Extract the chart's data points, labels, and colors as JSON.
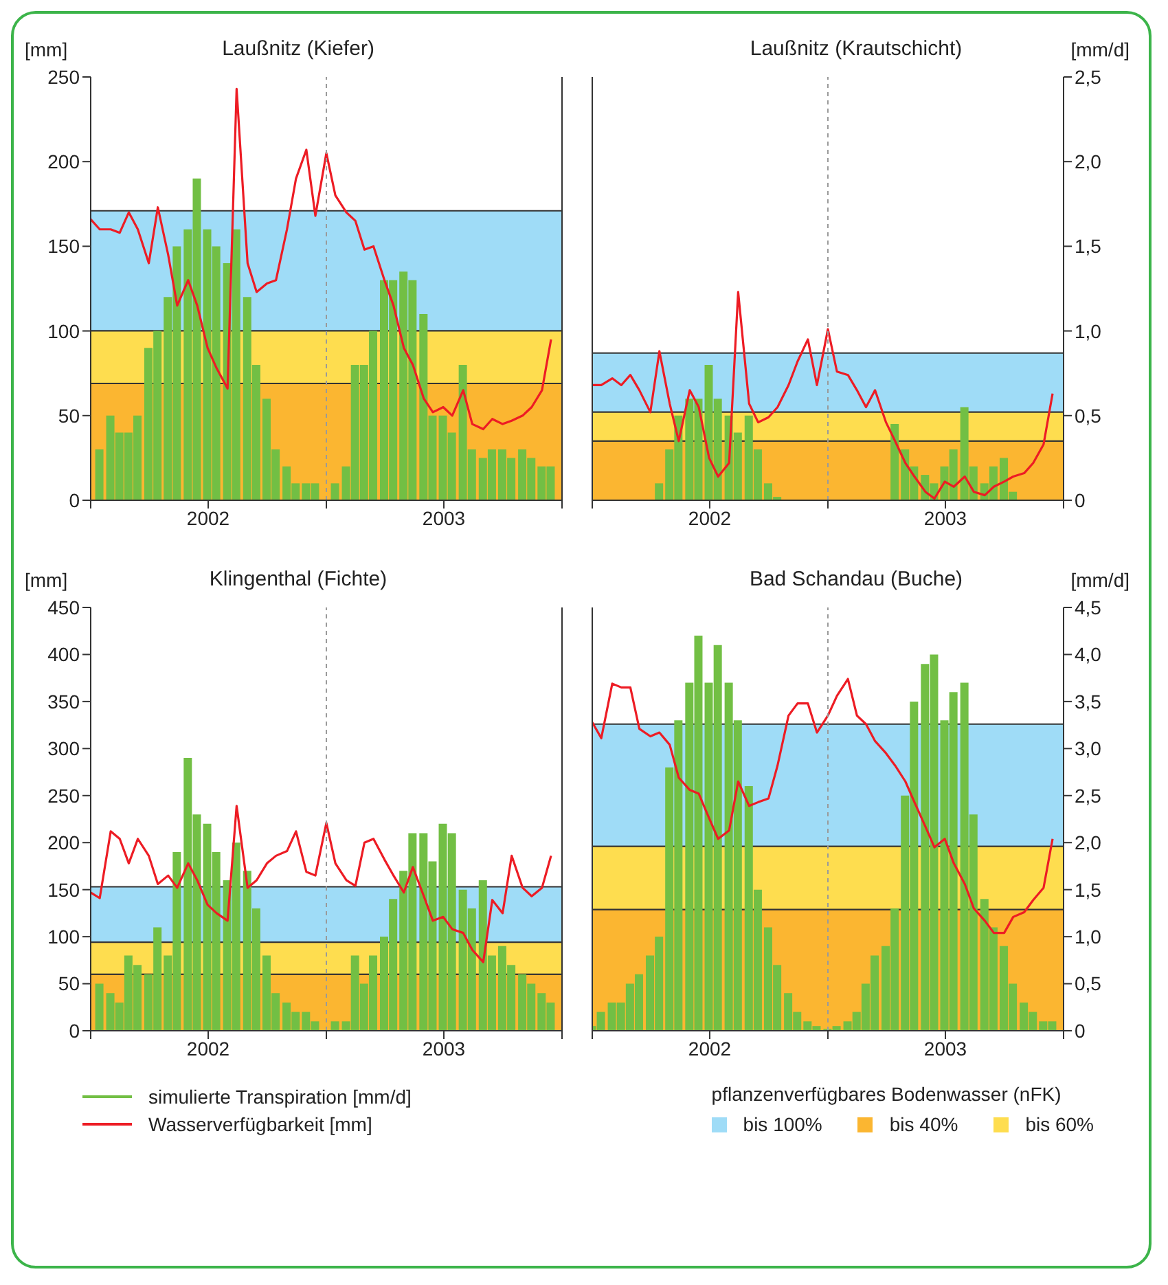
{
  "chart_data": [
    {
      "type": "bar",
      "title": "Laußnitz (Kiefer)",
      "ylabel": "[mm]",
      "tick_labels": "xy",
      "x": [
        "2002-01-01",
        "2002-01-15",
        "2002-02-01",
        "2002-02-15",
        "2002-03-01",
        "2002-03-15",
        "2002-04-01",
        "2002-04-15",
        "2002-05-01",
        "2002-05-15",
        "2002-06-01",
        "2002-06-15",
        "2002-07-01",
        "2002-07-15",
        "2002-08-01",
        "2002-08-15",
        "2002-09-01",
        "2002-09-15",
        "2002-10-01",
        "2002-10-15",
        "2002-11-01",
        "2002-11-15",
        "2002-12-01",
        "2002-12-15",
        "2003-01-01",
        "2003-01-15",
        "2003-02-01",
        "2003-02-15",
        "2003-03-01",
        "2003-03-15",
        "2003-04-01",
        "2003-04-15",
        "2003-05-01",
        "2003-05-15",
        "2003-06-01",
        "2003-06-15",
        "2003-07-01",
        "2003-07-15",
        "2003-08-01",
        "2003-08-15",
        "2003-09-01",
        "2003-09-15",
        "2003-10-01",
        "2003-10-15",
        "2003-11-01",
        "2003-11-15",
        "2003-12-01",
        "2003-12-15"
      ],
      "xlim": [
        "2002-01-01",
        "2004-01-01"
      ],
      "xticks": [
        {
          "value": "2002-01-01",
          "label": null
        },
        {
          "value": "2002-07-02",
          "label": "2002"
        },
        {
          "value": "2003-01-01",
          "label": null
        },
        {
          "value": "2003-07-02",
          "label": "2003"
        },
        {
          "value": "2004-01-01",
          "label": null
        }
      ],
      "ylim": [
        0,
        250
      ],
      "yticks": [
        0,
        50,
        100,
        150,
        200,
        250
      ],
      "y2lim": [
        0,
        2.5
      ],
      "series": [
        {
          "axis": "y2",
          "color": "#72bf44",
          "values": [
            0,
            0.3,
            0.5,
            0.4,
            0.4,
            0.5,
            0.9,
            1.0,
            1.2,
            1.5,
            1.6,
            1.9,
            1.6,
            1.5,
            1.4,
            1.6,
            1.2,
            0.8,
            0.6,
            0.3,
            0.2,
            0.1,
            0.1,
            0.1,
            0,
            0.1,
            0.2,
            0.8,
            0.8,
            1.0,
            1.3,
            1.3,
            1.35,
            1.3,
            1.1,
            0.5,
            0.5,
            0.4,
            0.8,
            0.3,
            0.25,
            0.3,
            0.3,
            0.25,
            0.3,
            0.25,
            0.2,
            0.2
          ]
        },
        {
          "type": "line",
          "color": "#ed1c24",
          "values": [
            166,
            160,
            160,
            158,
            170,
            160,
            140,
            173,
            145,
            115,
            130,
            115,
            90,
            78,
            66,
            243,
            140,
            123,
            128,
            130,
            160,
            190,
            207,
            168,
            205,
            180,
            170,
            165,
            148,
            150,
            130,
            115,
            90,
            80,
            60,
            52,
            55,
            50,
            65,
            45,
            42,
            48,
            45,
            47,
            50,
            55,
            65,
            95
          ]
        }
      ],
      "bands": [
        {
          "axis": "y",
          "from": 100,
          "to": 171,
          "color": "#9fdcf7"
        },
        {
          "axis": "y",
          "from": 0,
          "to": 69,
          "color": "#fbb631"
        },
        {
          "axis": "y",
          "from": 69,
          "to": 100,
          "color": "#fedd4f"
        }
      ],
      "ref_lines": [
        {
          "axis": "x",
          "value": "2003-01-01",
          "color": "#9a9a9a",
          "line_style": "dashed"
        }
      ]
    },
    {
      "type": "bar",
      "title": "Laußnitz (Krautschicht)",
      "y2label": "[mm/d]",
      "tick_labels": "xy2",
      "x": [
        "2002-01-01",
        "2002-01-15",
        "2002-02-01",
        "2002-02-15",
        "2002-03-01",
        "2002-03-15",
        "2002-04-01",
        "2002-04-15",
        "2002-05-01",
        "2002-05-15",
        "2002-06-01",
        "2002-06-15",
        "2002-07-01",
        "2002-07-15",
        "2002-08-01",
        "2002-08-15",
        "2002-09-01",
        "2002-09-15",
        "2002-10-01",
        "2002-10-15",
        "2002-11-01",
        "2002-11-15",
        "2002-12-01",
        "2002-12-15",
        "2003-01-01",
        "2003-01-15",
        "2003-02-01",
        "2003-02-15",
        "2003-03-01",
        "2003-03-15",
        "2003-04-01",
        "2003-04-15",
        "2003-05-01",
        "2003-05-15",
        "2003-06-01",
        "2003-06-15",
        "2003-07-01",
        "2003-07-15",
        "2003-08-01",
        "2003-08-15",
        "2003-09-01",
        "2003-09-15",
        "2003-10-01",
        "2003-10-15",
        "2003-11-01",
        "2003-11-15",
        "2003-12-01",
        "2003-12-15"
      ],
      "xlim": [
        "2002-01-01",
        "2004-01-01"
      ],
      "xticks": [
        {
          "value": "2002-01-01",
          "label": null
        },
        {
          "value": "2002-07-02",
          "label": "2002"
        },
        {
          "value": "2003-01-01",
          "label": null
        },
        {
          "value": "2003-07-02",
          "label": "2003"
        },
        {
          "value": "2004-01-01",
          "label": null
        }
      ],
      "ylim": [
        0,
        250
      ],
      "y2lim": [
        0,
        2.5
      ],
      "y2ticks": [
        0,
        {
          "value": 0.5,
          "label": "0,5"
        },
        {
          "value": 1,
          "label": "1,0"
        },
        {
          "value": 1.5,
          "label": "1,5"
        },
        {
          "value": 2,
          "label": "2,0"
        },
        {
          "value": 2.5,
          "label": "2,5"
        }
      ],
      "series": [
        {
          "axis": "y2",
          "color": "#72bf44",
          "values": [
            0,
            0,
            0,
            0,
            0,
            0,
            0,
            0.1,
            0.3,
            0.5,
            0.6,
            0.6,
            0.8,
            0.6,
            0.5,
            0.4,
            0.5,
            0.3,
            0.1,
            0.02,
            0,
            0,
            0,
            0,
            0,
            0,
            0,
            0,
            0,
            0,
            0,
            0.45,
            0.3,
            0.2,
            0.15,
            0.1,
            0.2,
            0.3,
            0.55,
            0.2,
            0.1,
            0.2,
            0.25,
            0.05,
            0,
            0,
            0,
            0
          ]
        },
        {
          "type": "line",
          "color": "#ed1c24",
          "values": [
            68,
            68,
            72,
            68,
            74,
            65,
            52,
            88,
            57,
            35,
            65,
            55,
            25,
            14,
            22,
            123,
            57,
            46,
            49,
            55,
            68,
            82,
            95,
            68,
            101,
            76,
            74,
            65,
            55,
            65,
            46,
            35,
            22,
            14,
            5,
            1,
            11,
            8,
            14,
            5,
            3,
            8,
            11,
            14,
            16,
            22,
            33,
            63
          ]
        }
      ],
      "bands": [
        {
          "axis": "y",
          "from": 52,
          "to": 87,
          "color": "#9fdcf7"
        },
        {
          "axis": "y",
          "from": 0,
          "to": 35,
          "color": "#fbb631"
        },
        {
          "axis": "y",
          "from": 35,
          "to": 52,
          "color": "#fedd4f"
        }
      ],
      "ref_lines": [
        {
          "axis": "x",
          "value": "2003-01-01",
          "color": "#9a9a9a",
          "line_style": "dashed"
        }
      ]
    },
    {
      "type": "bar",
      "title": "Klingenthal (Fichte)",
      "ylabel": "[mm]",
      "tick_labels": "xy",
      "x": [
        "2002-01-01",
        "2002-01-15",
        "2002-02-01",
        "2002-02-15",
        "2002-03-01",
        "2002-03-15",
        "2002-04-01",
        "2002-04-15",
        "2002-05-01",
        "2002-05-15",
        "2002-06-01",
        "2002-06-15",
        "2002-07-01",
        "2002-07-15",
        "2002-08-01",
        "2002-08-15",
        "2002-09-01",
        "2002-09-15",
        "2002-10-01",
        "2002-10-15",
        "2002-11-01",
        "2002-11-15",
        "2002-12-01",
        "2002-12-15",
        "2003-01-01",
        "2003-01-15",
        "2003-02-01",
        "2003-02-15",
        "2003-03-01",
        "2003-03-15",
        "2003-04-01",
        "2003-04-15",
        "2003-05-01",
        "2003-05-15",
        "2003-06-01",
        "2003-06-15",
        "2003-07-01",
        "2003-07-15",
        "2003-08-01",
        "2003-08-15",
        "2003-09-01",
        "2003-09-15",
        "2003-10-01",
        "2003-10-15",
        "2003-11-01",
        "2003-11-15",
        "2003-12-01",
        "2003-12-15"
      ],
      "xlim": [
        "2002-01-01",
        "2004-01-01"
      ],
      "xticks": [
        {
          "value": "2002-01-01",
          "label": null
        },
        {
          "value": "2002-07-02",
          "label": "2002"
        },
        {
          "value": "2003-01-01",
          "label": null
        },
        {
          "value": "2003-07-02",
          "label": "2003"
        },
        {
          "value": "2004-01-01",
          "label": null
        }
      ],
      "ylim": [
        0,
        450
      ],
      "yticks": [
        0,
        50,
        100,
        150,
        200,
        250,
        300,
        350,
        400,
        450
      ],
      "y2lim": [
        0,
        4.5
      ],
      "series": [
        {
          "axis": "y2",
          "color": "#72bf44",
          "values": [
            0,
            0.5,
            0.4,
            0.3,
            0.8,
            0.7,
            0.6,
            1.1,
            0.8,
            1.9,
            2.9,
            2.3,
            2.2,
            1.9,
            1.6,
            2.0,
            1.7,
            1.3,
            0.8,
            0.4,
            0.3,
            0.2,
            0.2,
            0.1,
            0,
            0.1,
            0.1,
            0.8,
            0.5,
            0.8,
            1.0,
            1.4,
            1.7,
            2.1,
            2.1,
            1.8,
            2.2,
            2.1,
            1.5,
            1.3,
            1.6,
            0.8,
            0.9,
            0.7,
            0.6,
            0.5,
            0.4,
            0.3
          ]
        },
        {
          "type": "line",
          "color": "#ed1c24",
          "values": [
            147,
            141,
            212,
            204,
            178,
            204,
            186,
            156,
            165,
            152,
            178,
            160,
            134,
            125,
            117,
            239,
            152,
            160,
            178,
            186,
            191,
            212,
            169,
            165,
            221,
            178,
            160,
            154,
            200,
            204,
            182,
            165,
            147,
            174,
            143,
            117,
            121,
            108,
            104,
            86,
            73,
            139,
            125,
            186,
            152,
            143,
            152,
            186
          ]
        }
      ],
      "bands": [
        {
          "axis": "y",
          "from": 94,
          "to": 153,
          "color": "#9fdcf7"
        },
        {
          "axis": "y",
          "from": 0,
          "to": 60,
          "color": "#fbb631"
        },
        {
          "axis": "y",
          "from": 60,
          "to": 94,
          "color": "#fedd4f"
        }
      ],
      "ref_lines": [
        {
          "axis": "x",
          "value": "2003-01-01",
          "color": "#9a9a9a",
          "line_style": "dashed"
        }
      ]
    },
    {
      "type": "bar",
      "title": "Bad Schandau (Buche)",
      "y2label": "[mm/d]",
      "tick_labels": "xy2",
      "legend": "bottom",
      "legend_title": "pflanzenverfügbares Bodenwasser (nFK)",
      "x": [
        "2002-01-01",
        "2002-01-15",
        "2002-02-01",
        "2002-02-15",
        "2002-03-01",
        "2002-03-15",
        "2002-04-01",
        "2002-04-15",
        "2002-05-01",
        "2002-05-15",
        "2002-06-01",
        "2002-06-15",
        "2002-07-01",
        "2002-07-15",
        "2002-08-01",
        "2002-08-15",
        "2002-09-01",
        "2002-09-15",
        "2002-10-01",
        "2002-10-15",
        "2002-11-01",
        "2002-11-15",
        "2002-12-01",
        "2002-12-15",
        "2003-01-01",
        "2003-01-15",
        "2003-02-01",
        "2003-02-15",
        "2003-03-01",
        "2003-03-15",
        "2003-04-01",
        "2003-04-15",
        "2003-05-01",
        "2003-05-15",
        "2003-06-01",
        "2003-06-15",
        "2003-07-01",
        "2003-07-15",
        "2003-08-01",
        "2003-08-15",
        "2003-09-01",
        "2003-09-15",
        "2003-10-01",
        "2003-10-15",
        "2003-11-01",
        "2003-11-15",
        "2003-12-01",
        "2003-12-15"
      ],
      "xlim": [
        "2002-01-01",
        "2004-01-01"
      ],
      "xticks": [
        {
          "value": "2002-01-01",
          "label": null
        },
        {
          "value": "2002-07-02",
          "label": "2002"
        },
        {
          "value": "2003-01-01",
          "label": null
        },
        {
          "value": "2003-07-02",
          "label": "2003"
        },
        {
          "value": "2004-01-01",
          "label": null
        }
      ],
      "ylim": [
        0,
        450
      ],
      "y2lim": [
        0,
        4.5
      ],
      "y2ticks": [
        0,
        {
          "value": 0.5,
          "label": "0,5"
        },
        {
          "value": 1,
          "label": "1,0"
        },
        {
          "value": 1.5,
          "label": "1,5"
        },
        {
          "value": 2,
          "label": "2,0"
        },
        {
          "value": 2.5,
          "label": "2,5"
        },
        {
          "value": 3,
          "label": "3,0"
        },
        {
          "value": 3.5,
          "label": "3,5"
        },
        {
          "value": 4,
          "label": "4,0"
        },
        {
          "value": 4.5,
          "label": "4,5"
        }
      ],
      "series": [
        {
          "axis": "y2",
          "name": "simulierte Transpiration [mm/d]",
          "color": "#72bf44",
          "values": [
            0.05,
            0.2,
            0.3,
            0.3,
            0.5,
            0.6,
            0.8,
            1.0,
            2.8,
            3.3,
            3.7,
            4.2,
            3.7,
            4.1,
            3.7,
            3.3,
            2.6,
            1.5,
            1.1,
            0.7,
            0.4,
            0.2,
            0.1,
            0.05,
            0.02,
            0.05,
            0.1,
            0.2,
            0.5,
            0.8,
            0.9,
            1.3,
            2.5,
            3.5,
            3.9,
            4.0,
            3.3,
            3.6,
            3.7,
            2.3,
            1.4,
            1.1,
            0.9,
            0.5,
            0.3,
            0.2,
            0.1,
            0.1
          ]
        },
        {
          "type": "line",
          "name": "Wasserverfügbarkeit [mm]",
          "color": "#ed1c24",
          "values": [
            328,
            311,
            369,
            365,
            365,
            321,
            313,
            317,
            304,
            269,
            256,
            252,
            226,
            204,
            213,
            265,
            239,
            243,
            247,
            282,
            335,
            348,
            348,
            317,
            335,
            356,
            374,
            335,
            326,
            308,
            295,
            282,
            265,
            243,
            217,
            195,
            204,
            178,
            156,
            130,
            117,
            104,
            104,
            121,
            126,
            139,
            152,
            204
          ]
        }
      ],
      "bands": [
        {
          "axis": "y",
          "from": 196,
          "to": 326,
          "color": "#9fdcf7",
          "label": "bis 100%"
        },
        {
          "axis": "y",
          "from": 0,
          "to": 129,
          "color": "#fbb631",
          "label": "bis 40%"
        },
        {
          "axis": "y",
          "from": 129,
          "to": 196,
          "color": "#fedd4f",
          "label": "bis 60%"
        }
      ],
      "ref_lines": [
        {
          "axis": "x",
          "value": "2003-01-01",
          "color": "#9a9a9a",
          "line_style": "dashed"
        }
      ]
    }
  ]
}
